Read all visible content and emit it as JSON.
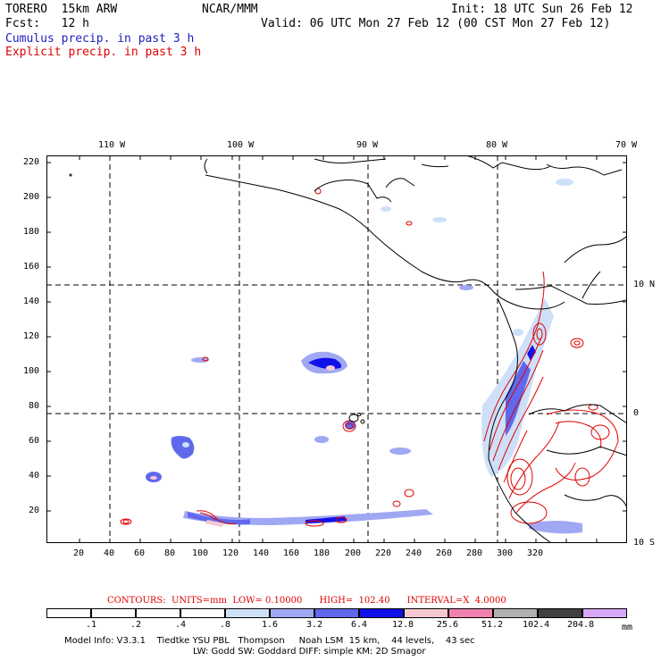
{
  "header": {
    "model": "TORERO  15km ARW",
    "org": "NCAR/MMM",
    "init": "Init: 18 UTC Sun 26 Feb 12",
    "fcst": "Fcst:   12 h",
    "valid": "Valid: 06 UTC Mon 27 Feb 12 (00 CST Mon 27 Feb 12)",
    "field1": "Cumulus precip. in past 3 h",
    "field2": "Explicit precip. in past 3 h",
    "colors": {
      "field1": "#2020c0",
      "field2": "#e00000"
    }
  },
  "map": {
    "lon_labels": [
      "110 W",
      "100 W",
      "90 W",
      "80 W",
      "70 W"
    ],
    "lat_labels": [
      "10 N",
      "0",
      "10 S"
    ],
    "y_ticks": [
      "220",
      "200",
      "180",
      "160",
      "140",
      "120",
      "100",
      "80",
      "60",
      "40",
      "20"
    ],
    "x_ticks": [
      "20",
      "40",
      "60",
      "80",
      "100",
      "120",
      "140",
      "160",
      "180",
      "200",
      "220",
      "240",
      "260",
      "280",
      "300",
      "320"
    ]
  },
  "contours": {
    "label": "CONTOURS:  UNITS=mm  LOW= 0.10000      HIGH=  102.40      INTERVAL=X  4.0000",
    "color": "#e00000"
  },
  "colorbar": {
    "levels": [
      ".1",
      ".2",
      ".4",
      ".8",
      "1.6",
      "3.2",
      "6.4",
      "12.8",
      "25.6",
      "51.2",
      "102.4",
      "204.8"
    ],
    "unit": "mm",
    "colors": [
      "#ffffff",
      "#ffffff",
      "#ffffff",
      "#ffffff",
      "#cde0f8",
      "#a0a8f4",
      "#6068ec",
      "#1010e8",
      "#f8c8d0",
      "#f080b0",
      "#b0b0b0",
      "#404040",
      "#d8a8f8"
    ]
  },
  "footer": {
    "line1": "Model Info: V3.3.1    Tiedtke YSU PBL   Thompson     Noah LSM  15 km,    44 levels,    43 sec",
    "line2": "LW: Godd SW: Goddard DIFF: simple KM: 2D Smagor"
  }
}
